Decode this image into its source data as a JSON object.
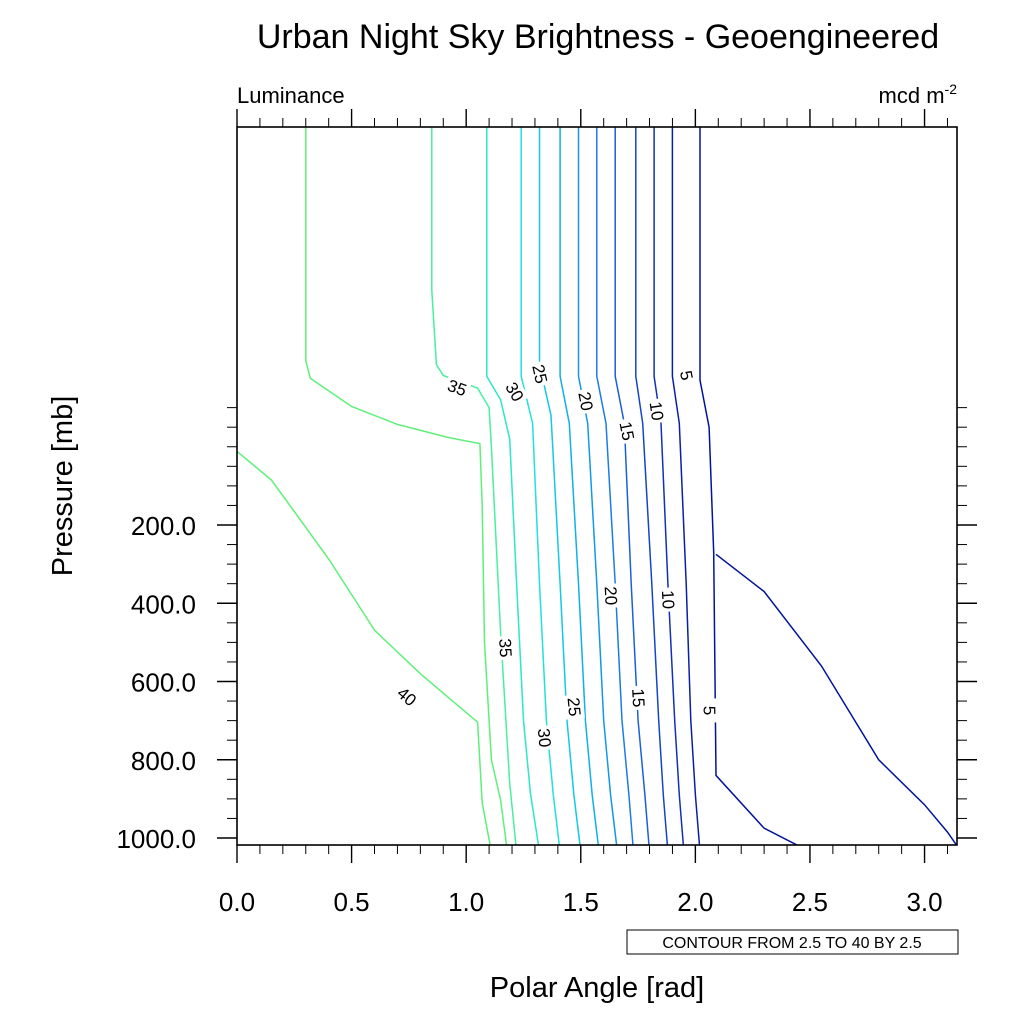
{
  "chart_data": {
    "type": "contour",
    "title": "Urban Night Sky Brightness - Geoengineered",
    "left_string": "Luminance",
    "right_string": "mcd m",
    "right_string_sup": "-2",
    "xlabel": "Polar Angle [rad]",
    "ylabel": "Pressure [mb]",
    "xlim": [
      0.0,
      3.14159
    ],
    "x_ticks": [
      0.0,
      0.5,
      1.0,
      1.5,
      2.0,
      2.5,
      3.0
    ],
    "x_tick_labels": [
      "0.0",
      "0.5",
      "1.0",
      "1.5",
      "2.0",
      "2.5",
      "3.0"
    ],
    "y_ticks": [
      200,
      400,
      600,
      800,
      1000
    ],
    "y_tick_labels": [
      "200.0",
      "400.0",
      "600.0",
      "800.0",
      "1000.0"
    ],
    "contour_info": "CONTOUR FROM 2.5 TO 40 BY 2.5",
    "contour_range": {
      "min": 2.5,
      "max": 40,
      "step": 2.5
    },
    "colors": {
      "light_green": "#5ef07a",
      "cyan": "#1ae0d8",
      "mid_blue": "#1c7ce6",
      "navy": "#00139a"
    },
    "contours": [
      {
        "level": 40,
        "color": "#5ef07a",
        "labels": [
          {
            "text": "40",
            "x": 0.74,
            "y": 639
          }
        ],
        "path": [
          [
            0.0,
            12
          ],
          [
            0.15,
            85
          ],
          [
            0.4,
            287
          ],
          [
            0.6,
            469
          ],
          [
            0.8,
            580
          ],
          [
            1.05,
            704
          ],
          [
            1.07,
            910
          ],
          [
            1.11,
            1035
          ]
        ]
      },
      {
        "level": 40,
        "color": "#5ef07a",
        "labels": [],
        "path": [
          [
            0.3,
            -1200
          ],
          [
            0.3,
            -220
          ],
          [
            0.32,
            -175
          ],
          [
            0.5,
            -103
          ],
          [
            0.7,
            -57
          ],
          [
            0.92,
            -24
          ],
          [
            1.06,
            -8
          ],
          [
            1.07,
            150
          ],
          [
            1.08,
            500
          ],
          [
            1.11,
            800
          ],
          [
            1.15,
            903
          ],
          [
            1.18,
            1035
          ]
        ]
      },
      {
        "level": 35,
        "color": "#47f0a0",
        "labels": [
          {
            "text": "35",
            "x": 0.96,
            "y": -150
          },
          {
            "text": "35",
            "x": 1.17,
            "y": 514
          }
        ],
        "path": [
          [
            0.85,
            -1200
          ],
          [
            0.85,
            -400
          ],
          [
            0.87,
            -210
          ],
          [
            0.9,
            -182
          ],
          [
            1.05,
            -150
          ],
          [
            1.1,
            -100
          ],
          [
            1.11,
            0
          ],
          [
            1.15,
            475
          ],
          [
            1.19,
            860
          ],
          [
            1.22,
            1035
          ]
        ]
      },
      {
        "level": 30,
        "color": "#2ee6c8",
        "labels": [
          {
            "text": "30",
            "x": 1.21,
            "y": -140
          },
          {
            "text": "30",
            "x": 1.34,
            "y": 744
          }
        ],
        "path": [
          [
            1.09,
            -1200
          ],
          [
            1.09,
            -180
          ],
          [
            1.15,
            -120
          ],
          [
            1.19,
            -20
          ],
          [
            1.22,
            350
          ],
          [
            1.25,
            700
          ],
          [
            1.28,
            885
          ],
          [
            1.32,
            1035
          ]
        ]
      },
      {
        "level": 27.5,
        "color": "#22e0dc",
        "labels": [],
        "path": [
          [
            1.24,
            -1200
          ],
          [
            1.24,
            -180
          ],
          [
            1.29,
            -60
          ],
          [
            1.32,
            350
          ],
          [
            1.35,
            700
          ],
          [
            1.38,
            890
          ],
          [
            1.41,
            1035
          ]
        ]
      },
      {
        "level": 25,
        "color": "#15c8e6",
        "labels": [
          {
            "text": "25",
            "x": 1.32,
            "y": -186
          },
          {
            "text": "25",
            "x": 1.47,
            "y": 665
          }
        ],
        "path": [
          [
            1.32,
            -1200
          ],
          [
            1.32,
            -210
          ],
          [
            1.37,
            -80
          ],
          [
            1.41,
            350
          ],
          [
            1.44,
            700
          ],
          [
            1.47,
            890
          ],
          [
            1.5,
            1035
          ]
        ]
      },
      {
        "level": 22.5,
        "color": "#10b0e8",
        "labels": [],
        "path": [
          [
            1.41,
            -1200
          ],
          [
            1.41,
            -180
          ],
          [
            1.45,
            -60
          ],
          [
            1.49,
            350
          ],
          [
            1.52,
            700
          ],
          [
            1.55,
            890
          ],
          [
            1.58,
            1035
          ]
        ]
      },
      {
        "level": 20,
        "color": "#1298e6",
        "labels": [
          {
            "text": "20",
            "x": 1.52,
            "y": -116
          },
          {
            "text": "20",
            "x": 1.63,
            "y": 381
          }
        ],
        "path": [
          [
            1.49,
            -1200
          ],
          [
            1.49,
            -180
          ],
          [
            1.53,
            -60
          ],
          [
            1.57,
            350
          ],
          [
            1.6,
            700
          ],
          [
            1.63,
            890
          ],
          [
            1.66,
            1035
          ]
        ]
      },
      {
        "level": 17.5,
        "color": "#1c7ce6",
        "labels": [],
        "path": [
          [
            1.57,
            -1200
          ],
          [
            1.57,
            -180
          ],
          [
            1.61,
            -60
          ],
          [
            1.65,
            350
          ],
          [
            1.68,
            700
          ],
          [
            1.71,
            890
          ],
          [
            1.73,
            1035
          ]
        ]
      },
      {
        "level": 15,
        "color": "#1a60d8",
        "labels": [
          {
            "text": "15",
            "x": 1.7,
            "y": -40
          },
          {
            "text": "15",
            "x": 1.75,
            "y": 642
          }
        ],
        "path": [
          [
            1.65,
            -1200
          ],
          [
            1.65,
            -180
          ],
          [
            1.69,
            -60
          ],
          [
            1.72,
            350
          ],
          [
            1.75,
            700
          ],
          [
            1.78,
            890
          ],
          [
            1.8,
            1035
          ]
        ]
      },
      {
        "level": 12.5,
        "color": "#1644c6",
        "labels": [],
        "path": [
          [
            1.74,
            -1200
          ],
          [
            1.74,
            -180
          ],
          [
            1.77,
            -60
          ],
          [
            1.81,
            350
          ],
          [
            1.84,
            700
          ],
          [
            1.86,
            890
          ],
          [
            1.88,
            1035
          ]
        ]
      },
      {
        "level": 10,
        "color": "#1130b4",
        "labels": [
          {
            "text": "10",
            "x": 1.83,
            "y": -91
          },
          {
            "text": "10",
            "x": 1.88,
            "y": 391
          }
        ],
        "path": [
          [
            1.82,
            -1200
          ],
          [
            1.82,
            -180
          ],
          [
            1.85,
            -60
          ],
          [
            1.88,
            350
          ],
          [
            1.91,
            700
          ],
          [
            1.93,
            890
          ],
          [
            1.95,
            1035
          ]
        ]
      },
      {
        "level": 7.5,
        "color": "#0a20a4",
        "labels": [],
        "path": [
          [
            1.9,
            -1200
          ],
          [
            1.9,
            -180
          ],
          [
            1.93,
            -60
          ],
          [
            1.96,
            350
          ],
          [
            1.98,
            700
          ],
          [
            2.0,
            890
          ],
          [
            2.02,
            1035
          ]
        ]
      },
      {
        "level": 5,
        "color": "#00139a",
        "labels": [
          {
            "text": "5",
            "x": 1.96,
            "y": -182
          },
          {
            "text": "5",
            "x": 2.06,
            "y": 674
          }
        ],
        "path": [
          [
            2.02,
            -1200
          ],
          [
            2.02,
            -170
          ],
          [
            2.06,
            -50
          ],
          [
            2.08,
            270
          ],
          [
            2.09,
            840
          ],
          [
            2.3,
            975
          ],
          [
            2.5,
            1035
          ]
        ]
      },
      {
        "level": 5,
        "color": "#00139a",
        "labels": [],
        "path": [
          [
            2.09,
            275
          ],
          [
            2.3,
            370
          ],
          [
            2.55,
            560
          ],
          [
            2.8,
            800
          ],
          [
            3.0,
            915
          ],
          [
            3.1,
            985
          ],
          [
            3.14159,
            1020
          ]
        ]
      }
    ]
  }
}
